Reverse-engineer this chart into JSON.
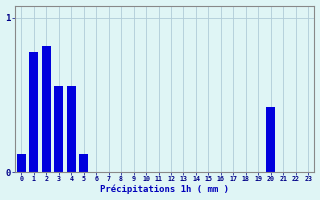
{
  "categories": [
    0,
    1,
    2,
    3,
    4,
    5,
    6,
    7,
    8,
    9,
    10,
    11,
    12,
    13,
    14,
    15,
    16,
    17,
    18,
    19,
    20,
    21,
    22,
    23
  ],
  "values": [
    0.12,
    0.78,
    0.82,
    0.56,
    0.56,
    0.12,
    0.0,
    0.0,
    0.0,
    0.0,
    0.0,
    0.0,
    0.0,
    0.0,
    0.0,
    0.0,
    0.0,
    0.0,
    0.0,
    0.0,
    0.42,
    0.0,
    0.0,
    0.0
  ],
  "bar_color": "#0000dd",
  "background_color": "#dff5f5",
  "grid_color": "#b0ccd8",
  "xlabel": "Précipitations 1h ( mm )",
  "xlabel_color": "#0000bb",
  "ylim": [
    0,
    1.08
  ],
  "xlim": [
    -0.5,
    23.5
  ],
  "tick_color": "#000088",
  "spine_color": "#888888",
  "yticks": [
    0,
    1
  ],
  "ytick_labels": [
    "0",
    "1"
  ]
}
